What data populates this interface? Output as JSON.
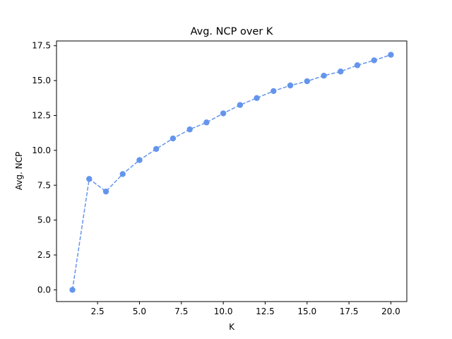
{
  "chart_data": {
    "type": "line",
    "title": "Avg. NCP over K",
    "xlabel": "K",
    "ylabel": "Avg. NCP",
    "xlim": [
      0.05,
      20.95
    ],
    "ylim": [
      -0.84,
      17.84
    ],
    "xticks": [
      2.5,
      5.0,
      7.5,
      10.0,
      12.5,
      15.0,
      17.5,
      20.0
    ],
    "xtick_labels": [
      "2.5",
      "5.0",
      "7.5",
      "10.0",
      "12.5",
      "15.0",
      "17.5",
      "20.0"
    ],
    "yticks": [
      0.0,
      2.5,
      5.0,
      7.5,
      10.0,
      12.5,
      15.0,
      17.5
    ],
    "ytick_labels": [
      "0.0",
      "2.5",
      "5.0",
      "7.5",
      "10.0",
      "12.5",
      "15.0",
      "17.5"
    ],
    "grid": false,
    "series": [
      {
        "color": "#6495ED",
        "line_style": "dashed",
        "marker": "circle",
        "x": [
          1,
          2,
          3,
          4,
          5,
          6,
          7,
          8,
          9,
          10,
          11,
          12,
          13,
          14,
          15,
          16,
          17,
          18,
          19,
          20
        ],
        "y": [
          0.0,
          7.95,
          7.05,
          8.3,
          9.3,
          10.1,
          10.85,
          11.5,
          12.0,
          12.65,
          13.25,
          13.75,
          14.25,
          14.65,
          14.95,
          15.35,
          15.65,
          16.1,
          16.45,
          16.85
        ]
      }
    ]
  }
}
